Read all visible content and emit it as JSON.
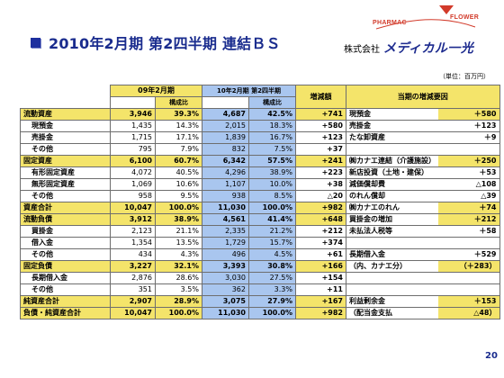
{
  "header": {
    "title": "2010年2月期 第2四半期 連結ＢＳ",
    "logo_top_left": "PHARMAC",
    "logo_top_right": "FLOWER",
    "logo_company_prefix": "株式会社",
    "logo_company_name": "メディカル一光",
    "unit": "（単位：百万円）",
    "page_number": "20"
  },
  "colors": {
    "header_yellow": "#f4e46a",
    "highlight_blue": "#a9c6ef",
    "title_blue": "#1a2c8e"
  },
  "table": {
    "col_headers": {
      "period_prev": "09年2月期",
      "period_curr": "10年2月期 第2四半期",
      "ratio": "構成比",
      "change": "増減額",
      "reasons": "当期の増減要因"
    },
    "rows": [
      {
        "label": "流動資産",
        "major": true,
        "prev": "3,946",
        "prev_r": "39.3%",
        "curr": "4,687",
        "curr_r": "42.5%",
        "diff": "+741",
        "reason": "現預金",
        "reason_val": "＋580"
      },
      {
        "label": "現預金",
        "major": false,
        "prev": "1,435",
        "prev_r": "14.3%",
        "curr": "2,015",
        "curr_r": "18.3%",
        "diff": "+580",
        "reason": "売掛金",
        "reason_val": "＋123"
      },
      {
        "label": "売掛金",
        "major": false,
        "prev": "1,715",
        "prev_r": "17.1%",
        "curr": "1,839",
        "curr_r": "16.7%",
        "diff": "+123",
        "reason": "たな卸資産",
        "reason_val": "＋9"
      },
      {
        "label": "その他",
        "major": false,
        "prev": "795",
        "prev_r": "7.9%",
        "curr": "832",
        "curr_r": "7.5%",
        "diff": "+37",
        "reason": "",
        "reason_val": ""
      },
      {
        "label": "固定資産",
        "major": true,
        "prev": "6,100",
        "prev_r": "60.7%",
        "curr": "6,342",
        "curr_r": "57.5%",
        "diff": "+241",
        "reason": "㈱カナエ連結（介護施設）",
        "reason_val": "＋250"
      },
      {
        "label": "有形固定資産",
        "major": false,
        "prev": "4,072",
        "prev_r": "40.5%",
        "curr": "4,296",
        "curr_r": "38.9%",
        "diff": "+223",
        "reason": "新店投資（土地・建保）",
        "reason_val": "＋53"
      },
      {
        "label": "無形固定資産",
        "major": false,
        "prev": "1,069",
        "prev_r": "10.6%",
        "curr": "1,107",
        "curr_r": "10.0%",
        "diff": "+38",
        "reason": "減価償却費",
        "reason_val": "△108"
      },
      {
        "label": "その他",
        "major": false,
        "prev": "958",
        "prev_r": "9.5%",
        "curr": "938",
        "curr_r": "8.5%",
        "diff": "△20",
        "reason": "のれん償却",
        "reason_val": "△39"
      },
      {
        "label": "資産合計",
        "major": true,
        "prev": "10,047",
        "prev_r": "100.0%",
        "curr": "11,030",
        "curr_r": "100.0%",
        "diff": "+982",
        "reason": "㈱カナエのれん",
        "reason_val": "＋74"
      },
      {
        "label": "流動負債",
        "major": true,
        "prev": "3,912",
        "prev_r": "38.9%",
        "curr": "4,561",
        "curr_r": "41.4%",
        "diff": "+648",
        "reason": "買掛金の増加",
        "reason_val": "＋212"
      },
      {
        "label": "買掛金",
        "major": false,
        "prev": "2,123",
        "prev_r": "21.1%",
        "curr": "2,335",
        "curr_r": "21.2%",
        "diff": "+212",
        "reason": "未払法人税等",
        "reason_val": "＋58"
      },
      {
        "label": "借入金",
        "major": false,
        "prev": "1,354",
        "prev_r": "13.5%",
        "curr": "1,729",
        "curr_r": "15.7%",
        "diff": "+374",
        "reason": "",
        "reason_val": ""
      },
      {
        "label": "その他",
        "major": false,
        "prev": "434",
        "prev_r": "4.3%",
        "curr": "496",
        "curr_r": "4.5%",
        "diff": "+61",
        "reason": "長期借入金",
        "reason_val": "＋529"
      },
      {
        "label": "固定負債",
        "major": true,
        "prev": "3,227",
        "prev_r": "32.1%",
        "curr": "3,393",
        "curr_r": "30.8%",
        "diff": "+166",
        "reason": "（内、カナエ分）",
        "reason_val": "（＋283）"
      },
      {
        "label": "長期借入金",
        "major": false,
        "prev": "2,876",
        "prev_r": "28.6%",
        "curr": "3,030",
        "curr_r": "27.5%",
        "diff": "+154",
        "reason": "",
        "reason_val": ""
      },
      {
        "label": "その他",
        "major": false,
        "prev": "351",
        "prev_r": "3.5%",
        "curr": "362",
        "curr_r": "3.3%",
        "diff": "+11",
        "reason": "",
        "reason_val": ""
      },
      {
        "label": "純資産合計",
        "major": true,
        "prev": "2,907",
        "prev_r": "28.9%",
        "curr": "3,075",
        "curr_r": "27.9%",
        "diff": "+167",
        "reason": "利益剰余金",
        "reason_val": "＋153"
      },
      {
        "label": "負債・純資産合計",
        "major": true,
        "prev": "10,047",
        "prev_r": "100.0%",
        "curr": "11,030",
        "curr_r": "100.0%",
        "diff": "+982",
        "reason": "（配当金支払",
        "reason_val": "△48）"
      }
    ]
  }
}
